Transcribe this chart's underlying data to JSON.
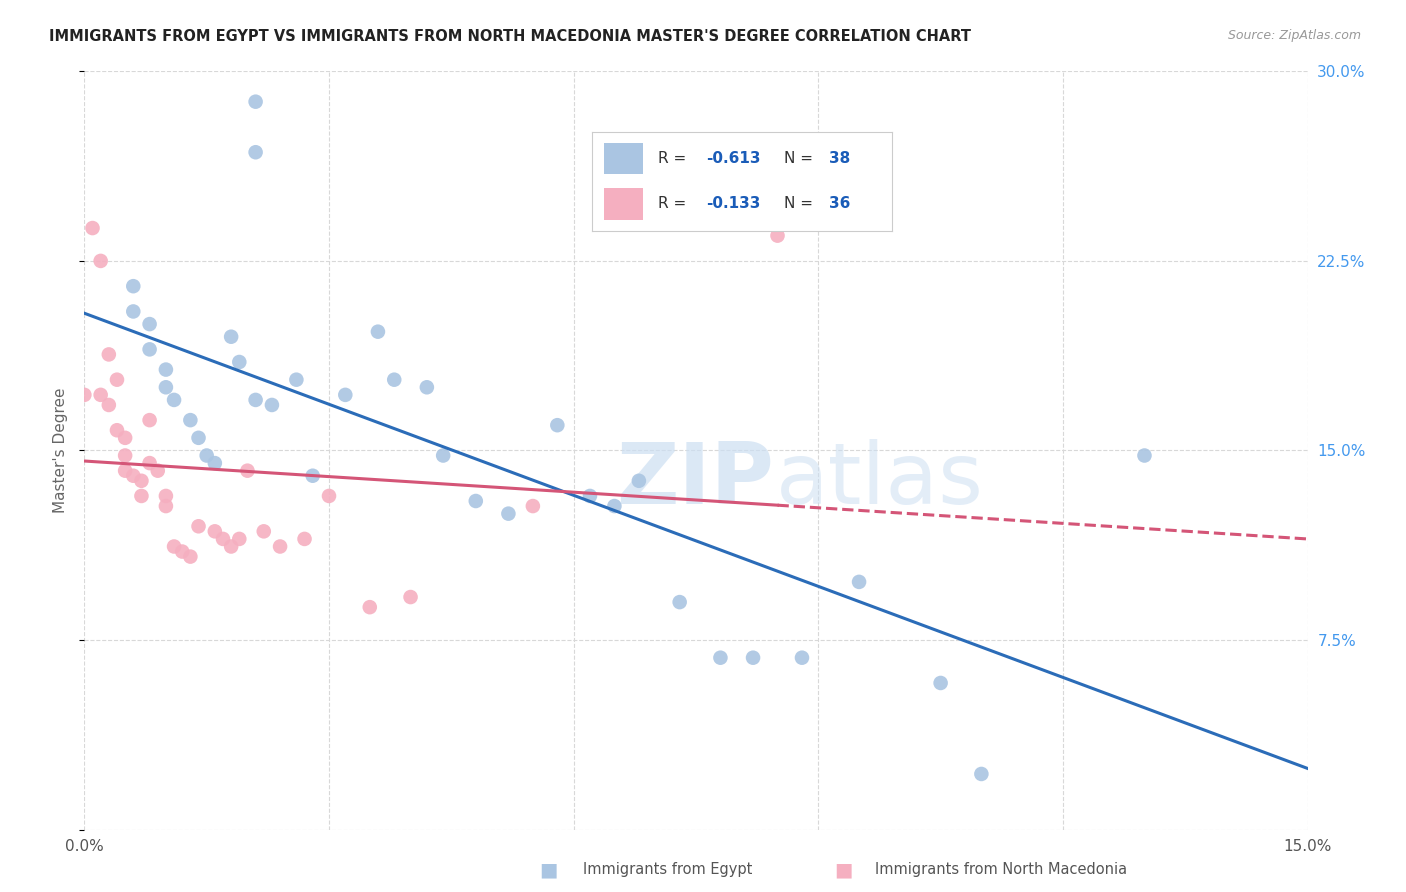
{
  "title": "IMMIGRANTS FROM EGYPT VS IMMIGRANTS FROM NORTH MACEDONIA MASTER'S DEGREE CORRELATION CHART",
  "source": "Source: ZipAtlas.com",
  "ylabel": "Master's Degree",
  "xmin": 0.0,
  "xmax": 0.15,
  "ymin": 0.0,
  "ymax": 0.3,
  "xtick_positions": [
    0.0,
    0.03,
    0.06,
    0.09,
    0.12,
    0.15
  ],
  "xticklabels": [
    "0.0%",
    "",
    "",
    "",
    "",
    "15.0%"
  ],
  "ytick_positions": [
    0.0,
    0.075,
    0.15,
    0.225,
    0.3
  ],
  "yticklabels_right": [
    "",
    "7.5%",
    "15.0%",
    "22.5%",
    "30.0%"
  ],
  "egypt_color": "#aac5e2",
  "north_mac_color": "#f5afc0",
  "egypt_line_color": "#2b6cb8",
  "north_mac_line_color": "#d45577",
  "egypt_x": [
    0.021,
    0.021,
    0.006,
    0.006,
    0.008,
    0.008,
    0.01,
    0.01,
    0.011,
    0.013,
    0.014,
    0.015,
    0.016,
    0.018,
    0.019,
    0.021,
    0.023,
    0.026,
    0.028,
    0.032,
    0.036,
    0.038,
    0.042,
    0.044,
    0.058,
    0.062,
    0.065,
    0.068,
    0.073,
    0.078,
    0.082,
    0.088,
    0.095,
    0.105,
    0.11,
    0.13,
    0.048,
    0.052
  ],
  "egypt_y": [
    0.288,
    0.268,
    0.215,
    0.205,
    0.2,
    0.19,
    0.182,
    0.175,
    0.17,
    0.162,
    0.155,
    0.148,
    0.145,
    0.195,
    0.185,
    0.17,
    0.168,
    0.178,
    0.14,
    0.172,
    0.197,
    0.178,
    0.175,
    0.148,
    0.16,
    0.132,
    0.128,
    0.138,
    0.09,
    0.068,
    0.068,
    0.068,
    0.098,
    0.058,
    0.022,
    0.148,
    0.13,
    0.125
  ],
  "north_mac_x": [
    0.001,
    0.002,
    0.002,
    0.003,
    0.003,
    0.004,
    0.004,
    0.005,
    0.005,
    0.005,
    0.006,
    0.007,
    0.007,
    0.008,
    0.008,
    0.009,
    0.01,
    0.01,
    0.011,
    0.012,
    0.013,
    0.014,
    0.016,
    0.017,
    0.018,
    0.019,
    0.02,
    0.022,
    0.024,
    0.027,
    0.03,
    0.035,
    0.04,
    0.055,
    0.085,
    0.0
  ],
  "north_mac_y": [
    0.238,
    0.225,
    0.172,
    0.168,
    0.188,
    0.178,
    0.158,
    0.155,
    0.148,
    0.142,
    0.14,
    0.138,
    0.132,
    0.162,
    0.145,
    0.142,
    0.132,
    0.128,
    0.112,
    0.11,
    0.108,
    0.12,
    0.118,
    0.115,
    0.112,
    0.115,
    0.142,
    0.118,
    0.112,
    0.115,
    0.132,
    0.088,
    0.092,
    0.128,
    0.235,
    0.172
  ],
  "watermark_zip": "ZIP",
  "watermark_atlas": "atlas",
  "background_color": "#ffffff",
  "grid_color": "#d8d8d8",
  "legend_r1": "-0.613",
  "legend_n1": "38",
  "legend_r2": "-0.133",
  "legend_n2": "36",
  "legend_text_color": "#333333",
  "legend_value_color": "#1a5cb8",
  "bottom_legend_label1": "Immigrants from Egypt",
  "bottom_legend_label2": "Immigrants from North Macedonia"
}
